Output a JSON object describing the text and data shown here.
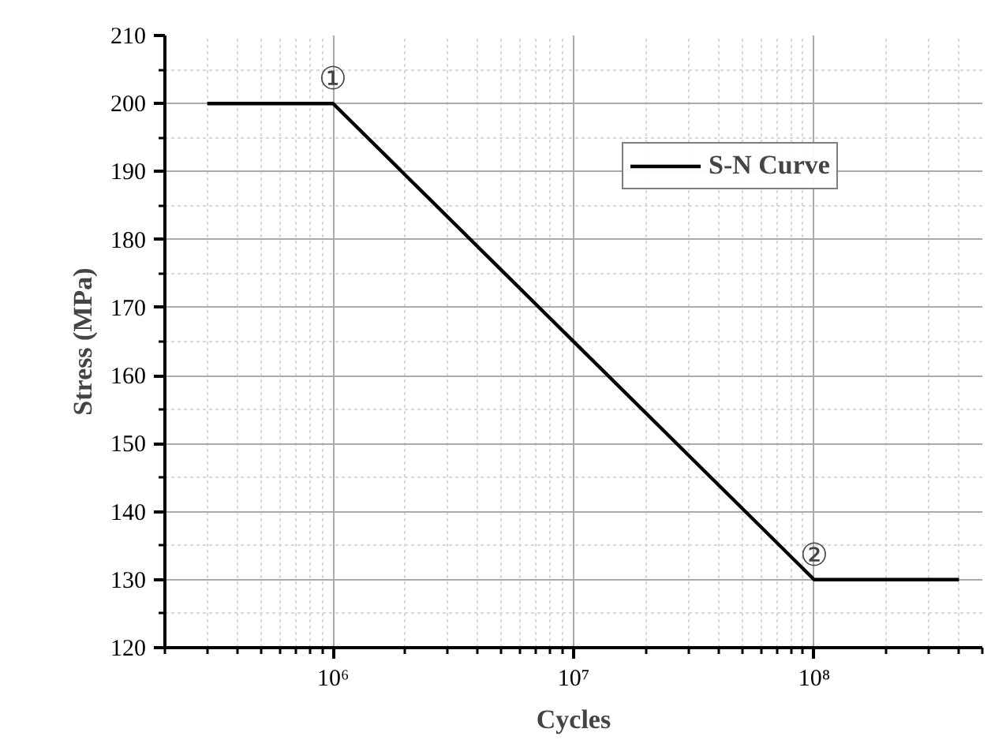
{
  "chart_data": {
    "type": "line",
    "xlabel": "Cycles",
    "ylabel": "Stress (MPa)",
    "log": "x",
    "xlim": [
      200000,
      500000000
    ],
    "ylim": [
      120,
      210
    ],
    "xticks": [
      {
        "value": 1000000,
        "label": "10⁶"
      },
      {
        "value": 10000000,
        "label": "10⁷"
      },
      {
        "value": 100000000,
        "label": "10⁸"
      }
    ],
    "yticks": [
      120,
      130,
      140,
      150,
      160,
      170,
      180,
      190,
      200,
      210
    ],
    "series": [
      {
        "name": "S-N Curve",
        "color": "#000000",
        "x": [
          300000,
          1000000,
          100000000,
          400000000
        ],
        "values": [
          200,
          200,
          130,
          130
        ]
      }
    ],
    "annotations": [
      {
        "text": "①",
        "x": 1000000,
        "y": 200
      },
      {
        "text": "②",
        "x": 100000000,
        "y": 130
      }
    ],
    "grid": true,
    "legend": "top right",
    "line_style": "solid"
  }
}
